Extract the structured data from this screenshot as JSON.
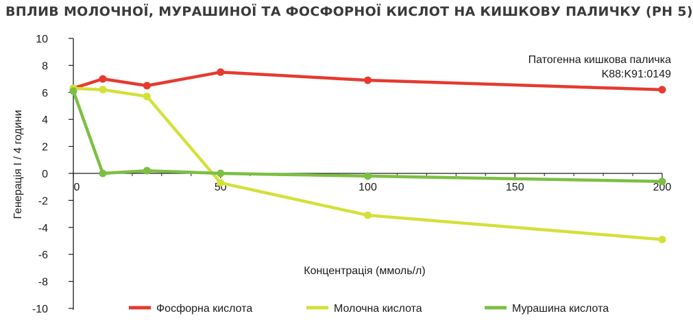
{
  "chart_data": {
    "type": "line",
    "title": "ВПЛИВ МОЛОЧНОЇ, МУРАШИНОЇ ТА ФОСФОРНОЇ КИСЛОТ НА КИШКОВУ ПАЛИЧКУ (РН 5)",
    "xlabel": "Концентрація (ммоль/л)",
    "ylabel": "Генерація І / 4 години",
    "xlim": [
      0,
      200
    ],
    "ylim": [
      -10,
      10
    ],
    "x_ticks": [
      0,
      50,
      100,
      150,
      200
    ],
    "y_ticks": [
      10,
      8,
      6,
      4,
      2,
      0,
      -2,
      -4,
      -6,
      -8,
      -10
    ],
    "annotation": [
      "Патогенна кишкова паличка",
      "K88:K91:0149"
    ],
    "legend_position": "bottom",
    "series": [
      {
        "name": "Фосфорна кислота",
        "color": "#e63a30",
        "points": [
          [
            0,
            6.3
          ],
          [
            10,
            7.0
          ],
          [
            25,
            6.5
          ],
          [
            50,
            7.5
          ],
          [
            100,
            6.9
          ],
          [
            200,
            6.2
          ]
        ]
      },
      {
        "name": "Молочна кислота",
        "color": "#d4e03a",
        "points": [
          [
            0,
            6.3
          ],
          [
            10,
            6.2
          ],
          [
            25,
            5.7
          ],
          [
            50,
            -0.7
          ],
          [
            100,
            -3.1
          ],
          [
            200,
            -4.9
          ]
        ]
      },
      {
        "name": "Мурашина кислота",
        "color": "#7cbf42",
        "points": [
          [
            0,
            6.1
          ],
          [
            10,
            0.0
          ],
          [
            25,
            0.2
          ],
          [
            50,
            0.0
          ],
          [
            100,
            -0.2
          ],
          [
            200,
            -0.6
          ]
        ]
      }
    ]
  }
}
